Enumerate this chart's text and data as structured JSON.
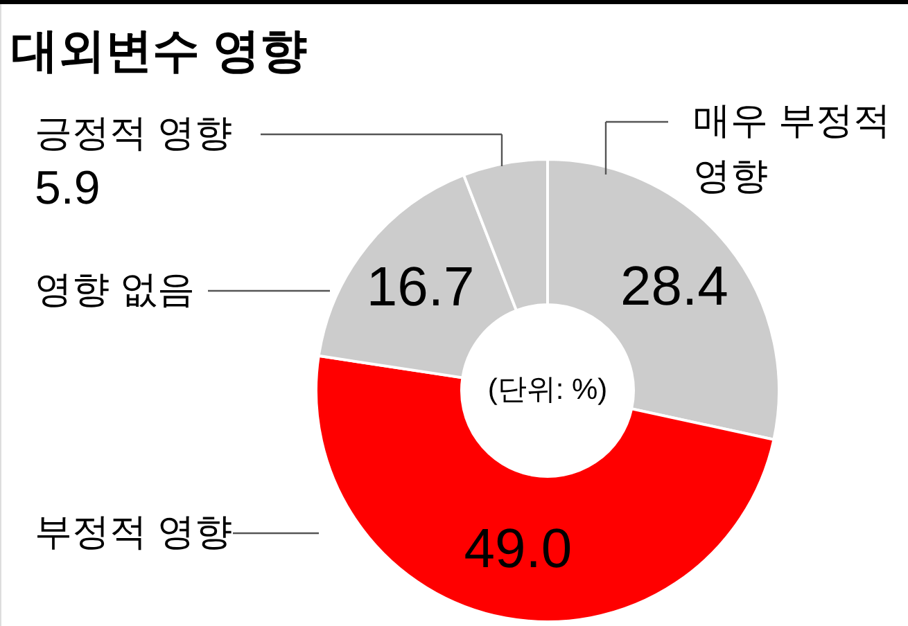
{
  "chart_data": {
    "type": "donut",
    "title": "대외변수 영향",
    "categories": [
      "매우 부정적 영향",
      "부정적 영향",
      "영향 없음",
      "긍정적 영향"
    ],
    "values": [
      28.4,
      49.0,
      16.7,
      5.9
    ],
    "colors": [
      "#cccccc",
      "#ff0000",
      "#cccccc",
      "#cccccc"
    ],
    "value_labels": [
      "28.4",
      "49.0",
      "16.7",
      "5.9"
    ],
    "annotations": [
      "(단위: %)"
    ]
  }
}
